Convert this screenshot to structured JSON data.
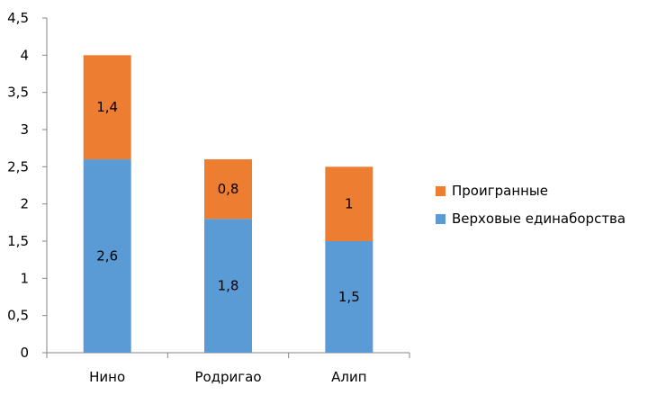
{
  "chart_data": {
    "type": "bar",
    "stacked": true,
    "categories": [
      "Нино",
      "Родригао",
      "Алип"
    ],
    "series": [
      {
        "name": "Верховые единаборства",
        "values": [
          2.6,
          1.8,
          1.5
        ],
        "value_labels": [
          "2,6",
          "1,8",
          "1,5"
        ],
        "color": "#5B9BD5"
      },
      {
        "name": "Проигранные",
        "values": [
          1.4,
          0.8,
          1
        ],
        "value_labels": [
          "1,4",
          "0,8",
          "1"
        ],
        "color": "#ED7D31"
      }
    ],
    "title": "",
    "xlabel": "",
    "ylabel": "",
    "ylim": [
      0,
      4.5
    ],
    "yticks": [
      0,
      0.5,
      1,
      1.5,
      2,
      2.5,
      3,
      3.5,
      4,
      4.5
    ],
    "ytick_labels": [
      "0",
      "0,5",
      "1",
      "1,5",
      "2",
      "2,5",
      "3",
      "3,5",
      "4",
      "4,5"
    ],
    "grid": false,
    "legend": {
      "position": "right",
      "entries": [
        "Проигранные",
        "Верховые единаборства"
      ]
    }
  }
}
